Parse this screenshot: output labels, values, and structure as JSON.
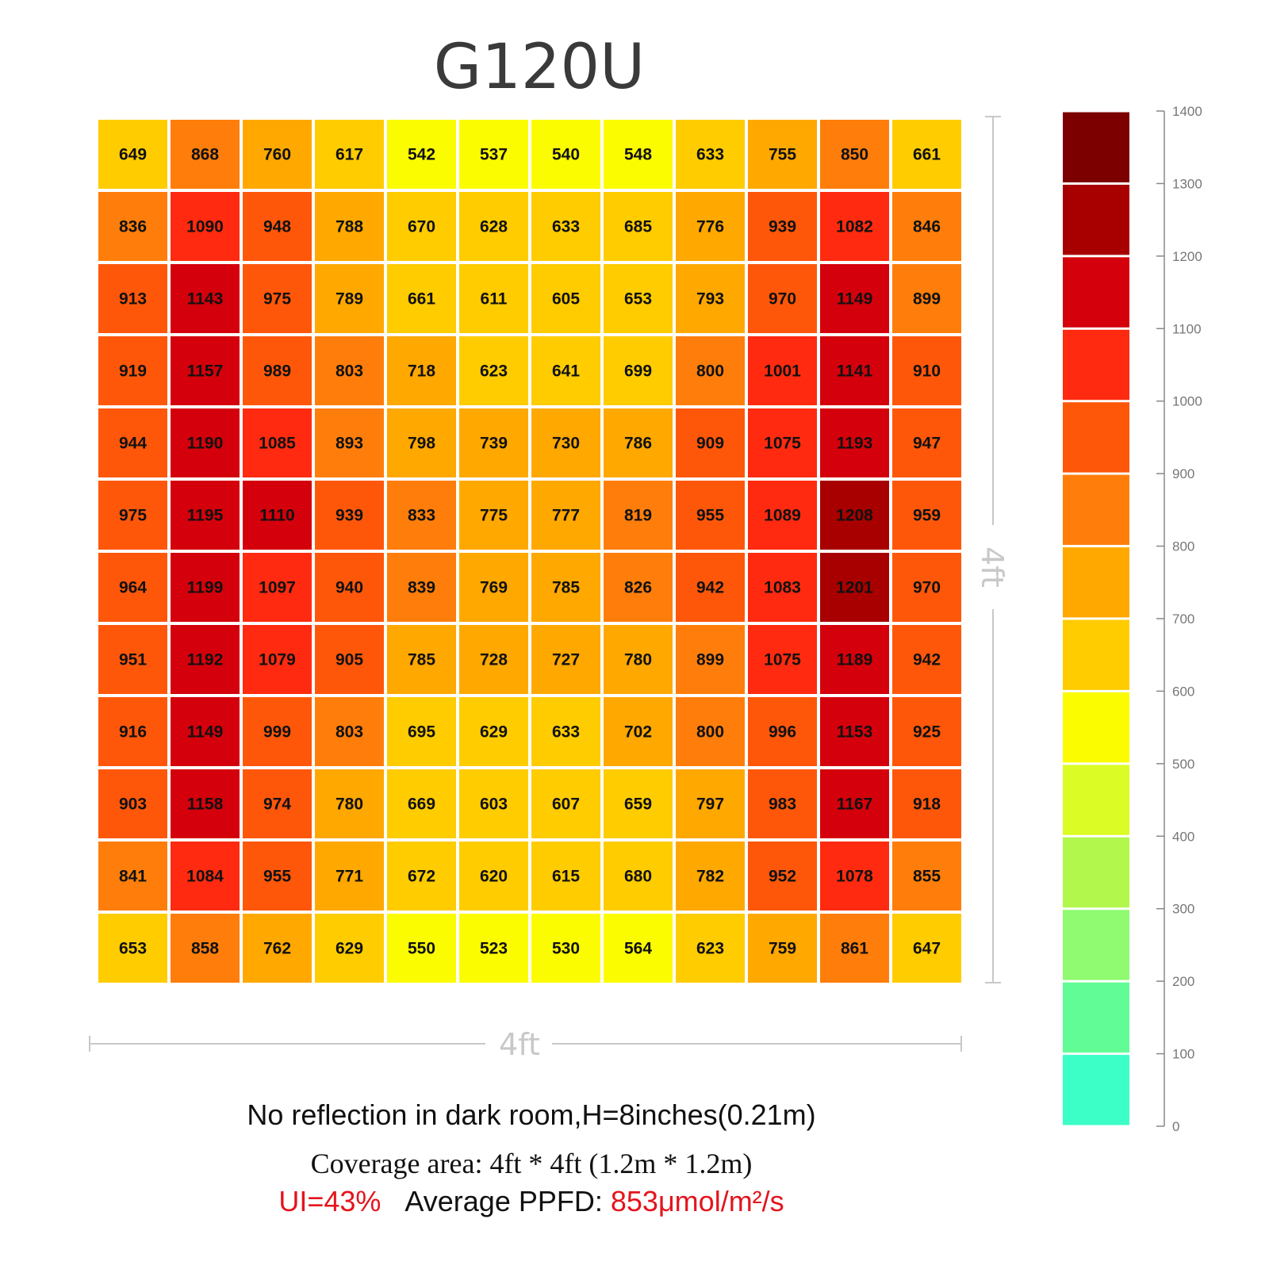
{
  "chart_data": {
    "type": "heatmap",
    "title": "G120U",
    "rows": [
      [
        649,
        868,
        760,
        617,
        542,
        537,
        540,
        548,
        633,
        755,
        850,
        661
      ],
      [
        836,
        1090,
        948,
        788,
        670,
        628,
        633,
        685,
        776,
        939,
        1082,
        846
      ],
      [
        913,
        1143,
        975,
        789,
        661,
        611,
        605,
        653,
        793,
        970,
        1149,
        899
      ],
      [
        919,
        1157,
        989,
        803,
        718,
        623,
        641,
        699,
        800,
        1001,
        1141,
        910
      ],
      [
        944,
        1190,
        1085,
        893,
        798,
        739,
        730,
        786,
        909,
        1075,
        1193,
        947
      ],
      [
        975,
        1195,
        1110,
        939,
        833,
        775,
        777,
        819,
        955,
        1089,
        1208,
        959
      ],
      [
        964,
        1199,
        1097,
        940,
        839,
        769,
        785,
        826,
        942,
        1083,
        1201,
        970
      ],
      [
        951,
        1192,
        1079,
        905,
        785,
        728,
        727,
        780,
        899,
        1075,
        1189,
        942
      ],
      [
        916,
        1149,
        999,
        803,
        695,
        629,
        633,
        702,
        800,
        996,
        1153,
        925
      ],
      [
        903,
        1158,
        974,
        780,
        669,
        603,
        607,
        659,
        797,
        983,
        1167,
        918
      ],
      [
        841,
        1084,
        955,
        771,
        672,
        620,
        615,
        680,
        782,
        952,
        1078,
        855
      ],
      [
        653,
        858,
        762,
        629,
        550,
        523,
        530,
        564,
        623,
        759,
        861,
        647
      ]
    ],
    "xlabel": "4ft",
    "ylabel": "4ft",
    "colorscale": {
      "ticks": [
        0,
        100,
        200,
        300,
        400,
        500,
        600,
        700,
        800,
        900,
        1000,
        1100,
        1200,
        1300,
        1400
      ],
      "bins": [
        {
          "min": 0,
          "max": 100,
          "color": "#3cffc8"
        },
        {
          "min": 100,
          "max": 200,
          "color": "#62fc96"
        },
        {
          "min": 200,
          "max": 300,
          "color": "#90fb70"
        },
        {
          "min": 300,
          "max": 400,
          "color": "#b2f84c"
        },
        {
          "min": 400,
          "max": 500,
          "color": "#dcfc25"
        },
        {
          "min": 500,
          "max": 600,
          "color": "#fcfc00"
        },
        {
          "min": 600,
          "max": 700,
          "color": "#ffcc00"
        },
        {
          "min": 700,
          "max": 800,
          "color": "#ffa800"
        },
        {
          "min": 800,
          "max": 900,
          "color": "#ff7e0b"
        },
        {
          "min": 900,
          "max": 1000,
          "color": "#ff570a"
        },
        {
          "min": 1000,
          "max": 1100,
          "color": "#ff2a0f"
        },
        {
          "min": 1100,
          "max": 1200,
          "color": "#d4000b"
        },
        {
          "min": 1200,
          "max": 1300,
          "color": "#a80000"
        },
        {
          "min": 1300,
          "max": 1400,
          "color": "#7c0000"
        }
      ]
    }
  },
  "captions": {
    "line1": "No reflection in dark room,H=8inches(0.21m)",
    "line2": "Coverage area: 4ft * 4ft (1.2m * 1.2m)",
    "ui": "UI=43%",
    "ppfd_label": "Average PPFD:",
    "ppfd_value": "853μmol/m²/s"
  }
}
